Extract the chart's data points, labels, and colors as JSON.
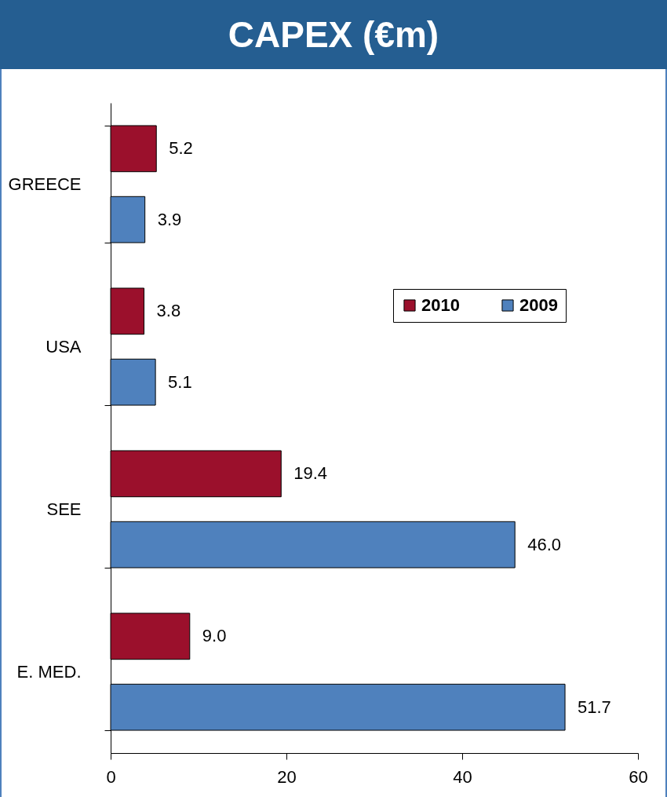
{
  "chart_data": {
    "type": "bar",
    "orientation": "horizontal",
    "title": "CAPEX (€m)",
    "categories": [
      "GREECE",
      "USA",
      "SEE",
      "E. MED."
    ],
    "series": [
      {
        "name": "2010",
        "color": "#9b102c",
        "values": [
          5.2,
          3.8,
          19.4,
          9.0
        ],
        "value_labels": [
          "5.2",
          "3.8",
          "19.4",
          "9.0"
        ]
      },
      {
        "name": "2009",
        "color": "#4f81bd",
        "values": [
          3.9,
          5.1,
          46.0,
          51.7
        ],
        "value_labels": [
          "3.9",
          "5.1",
          "46.0",
          "51.7"
        ]
      }
    ],
    "xlim": [
      0,
      60
    ],
    "xticks": [
      0,
      20,
      40,
      60
    ],
    "legend": "top right",
    "grid": false
  }
}
